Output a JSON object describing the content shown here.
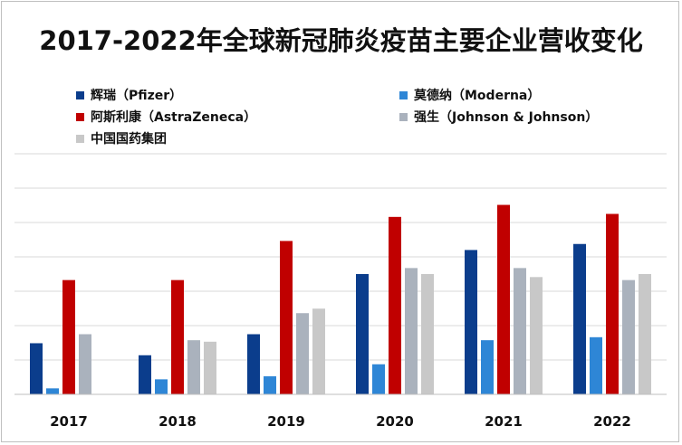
{
  "chart_data": {
    "type": "bar",
    "title": "2017-2022年全球新冠肺炎疫苗主要企业营收变化",
    "xlabel": "",
    "ylabel": "",
    "categories": [
      "2017",
      "2018",
      "2019",
      "2020",
      "2021",
      "2022"
    ],
    "grid": true,
    "y_tick_labels_shown": false,
    "legend_placement": "top",
    "series": [
      {
        "name": "辉瑞（Pfizer）",
        "color": "#0b3d8c",
        "values": [
          1.7,
          1.3,
          2.0,
          4.0,
          4.8,
          5.0
        ]
      },
      {
        "name": "莫德纳（Moderna）",
        "color": "#2e86d6",
        "values": [
          0.2,
          0.5,
          0.6,
          1.0,
          1.8,
          1.9
        ]
      },
      {
        "name": "阿斯利康（AstraZeneca）",
        "color": "#c00000",
        "values": [
          3.8,
          3.8,
          5.1,
          5.9,
          6.3,
          6.0
        ]
      },
      {
        "name": "强生（Johnson & Johnson）",
        "color": "#aab2bd",
        "values": [
          2.0,
          1.8,
          2.7,
          4.2,
          4.2,
          3.8
        ]
      },
      {
        "name": "中国国药集团",
        "color": "#c8c8c8",
        "values": [
          null,
          1.75,
          2.85,
          4.0,
          3.9,
          4.0
        ]
      }
    ],
    "ylim": [
      0,
      8
    ]
  }
}
